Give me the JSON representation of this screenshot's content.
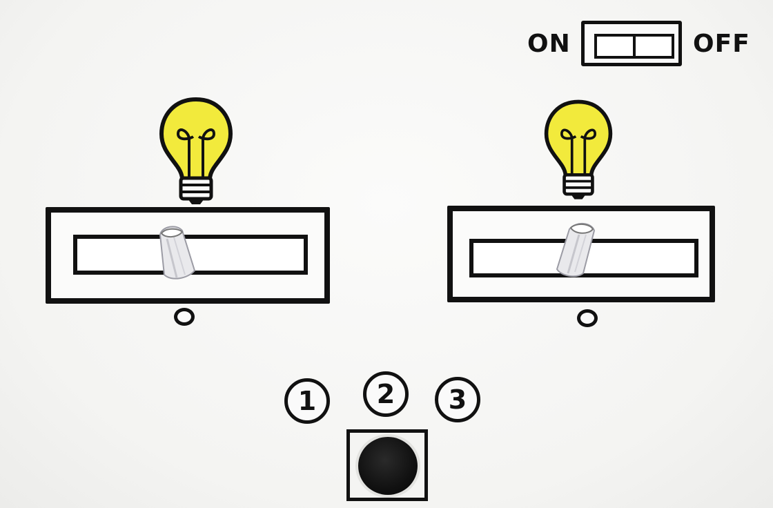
{
  "master_switch": {
    "on_label": "ON",
    "off_label": "OFF"
  },
  "lights": [
    {
      "bulb_icon": "lightbulb-icon",
      "bulb_color": "#f2ea3c",
      "slider_level": 0.45
    },
    {
      "bulb_icon": "lightbulb-icon",
      "bulb_color": "#f2ea3c",
      "slider_level": 0.48
    }
  ],
  "modes": {
    "items": [
      {
        "label": "1"
      },
      {
        "label": "2"
      },
      {
        "label": "3"
      }
    ]
  },
  "push_button": {
    "icon": "round-push-button",
    "color": "#111111"
  }
}
